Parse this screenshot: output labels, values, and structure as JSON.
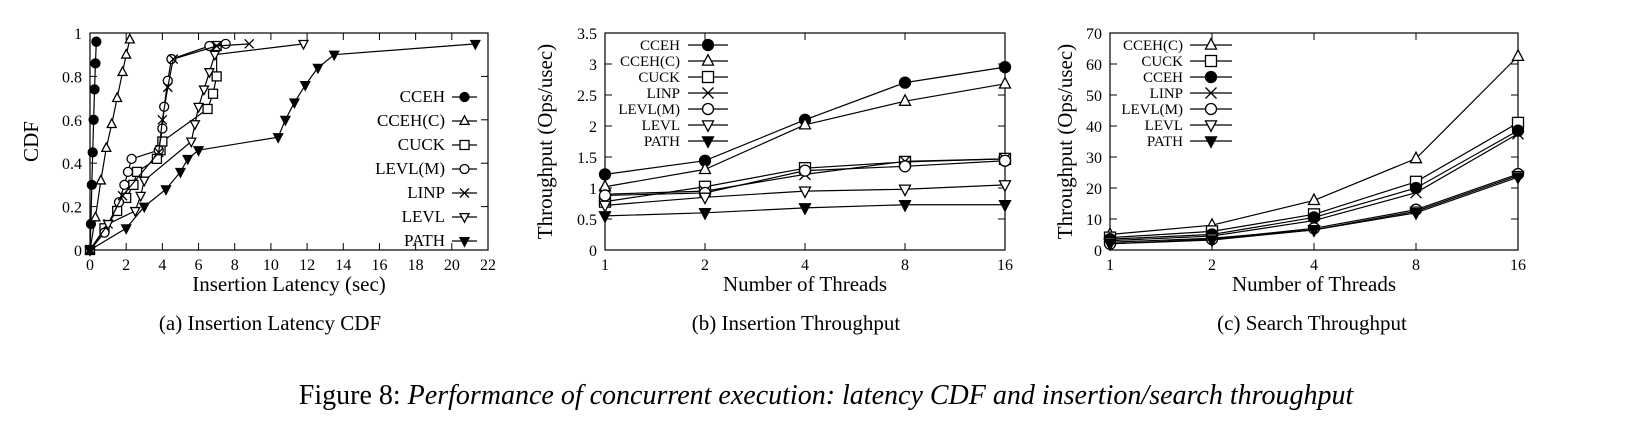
{
  "figure_caption": {
    "label": "Figure 8:",
    "text": "Performance of concurrent execution: latency CDF and insertion/search throughput"
  },
  "chart_data": [
    {
      "id": "a",
      "type": "line",
      "subcaption": "(a)  Insertion Latency CDF",
      "xlabel": "Insertion Latency (sec)",
      "ylabel": "CDF",
      "xlim": [
        0,
        22
      ],
      "ylim": [
        0,
        1
      ],
      "xticks": [
        0,
        2,
        4,
        6,
        8,
        10,
        12,
        14,
        16,
        18,
        20,
        22
      ],
      "yticks": [
        0,
        0.2,
        0.4,
        0.6,
        0.8,
        1
      ],
      "grid": false,
      "legend_position": "right",
      "series": [
        {
          "name": "CCEH",
          "marker": "filled-circle",
          "x": [
            0,
            0.05,
            0.1,
            0.15,
            0.2,
            0.25,
            0.3,
            0.35
          ],
          "y": [
            0,
            0.12,
            0.3,
            0.45,
            0.6,
            0.74,
            0.86,
            0.96
          ]
        },
        {
          "name": "CCEH(C)",
          "marker": "triangle",
          "x": [
            0,
            0.3,
            0.6,
            0.9,
            1.2,
            1.5,
            1.8,
            2.0,
            2.2
          ],
          "y": [
            0,
            0.15,
            0.32,
            0.47,
            0.58,
            0.7,
            0.82,
            0.9,
            0.97
          ]
        },
        {
          "name": "CUCK",
          "marker": "square",
          "x": [
            0,
            0.8,
            1.5,
            2.0,
            2.4,
            2.6,
            3.7,
            3.9,
            4.0,
            6.5,
            6.8,
            7.0,
            7.0
          ],
          "y": [
            0,
            0.1,
            0.18,
            0.24,
            0.3,
            0.36,
            0.42,
            0.46,
            0.5,
            0.65,
            0.72,
            0.8,
            0.94
          ]
        },
        {
          "name": "LEVL(M)",
          "marker": "circle",
          "x": [
            0,
            0.8,
            1.6,
            1.9,
            2.1,
            2.3,
            3.8,
            4.0,
            4.1,
            4.3,
            4.5,
            6.6,
            7.5
          ],
          "y": [
            0,
            0.08,
            0.22,
            0.3,
            0.36,
            0.42,
            0.46,
            0.56,
            0.66,
            0.78,
            0.88,
            0.94,
            0.95
          ]
        },
        {
          "name": "LINP",
          "marker": "x",
          "x": [
            0,
            1.0,
            1.8,
            3.8,
            4.0,
            4.3,
            4.6,
            7.0,
            8.8
          ],
          "y": [
            0,
            0.12,
            0.25,
            0.45,
            0.6,
            0.75,
            0.88,
            0.94,
            0.95
          ]
        },
        {
          "name": "LEVL",
          "marker": "triangle-down",
          "x": [
            0,
            1.0,
            2.5,
            2.8,
            3.0,
            5.6,
            5.8,
            6.0,
            6.3,
            6.6,
            6.9,
            11.8
          ],
          "y": [
            0,
            0.12,
            0.18,
            0.25,
            0.32,
            0.5,
            0.58,
            0.66,
            0.74,
            0.82,
            0.9,
            0.95
          ]
        },
        {
          "name": "PATH",
          "marker": "filled-triangle-down",
          "x": [
            0,
            2.0,
            3.0,
            4.2,
            5.0,
            5.4,
            6.0,
            10.4,
            10.8,
            11.3,
            11.9,
            12.6,
            13.5,
            21.3
          ],
          "y": [
            0,
            0.1,
            0.2,
            0.28,
            0.36,
            0.42,
            0.46,
            0.52,
            0.6,
            0.68,
            0.76,
            0.84,
            0.9,
            0.95
          ]
        }
      ]
    },
    {
      "id": "b",
      "type": "line",
      "subcaption": "(b)  Insertion Throughput",
      "xlabel": "Number of Threads",
      "ylabel": "Throughput (Ops/usec)",
      "categories": [
        "1",
        "2",
        "4",
        "8",
        "16"
      ],
      "ylim": [
        0,
        3.5
      ],
      "yticks": [
        0,
        0.5,
        1,
        1.5,
        2,
        2.5,
        3,
        3.5
      ],
      "grid": false,
      "legend_position": "top-left",
      "series": [
        {
          "name": "CCEH",
          "marker": "filled-circle",
          "values": [
            1.22,
            1.44,
            2.1,
            2.7,
            2.95
          ]
        },
        {
          "name": "CCEH(C)",
          "marker": "triangle",
          "values": [
            1.02,
            1.3,
            2.02,
            2.4,
            2.68
          ]
        },
        {
          "name": "CUCK",
          "marker": "square",
          "values": [
            0.78,
            1.02,
            1.32,
            1.42,
            1.47
          ]
        },
        {
          "name": "LINP",
          "marker": "x",
          "values": [
            0.9,
            0.95,
            1.22,
            1.43,
            1.47
          ]
        },
        {
          "name": "LEVL(M)",
          "marker": "circle",
          "values": [
            0.88,
            0.92,
            1.28,
            1.35,
            1.44
          ]
        },
        {
          "name": "LEVL",
          "marker": "triangle-down",
          "values": [
            0.72,
            0.85,
            0.95,
            0.98,
            1.05
          ]
        },
        {
          "name": "PATH",
          "marker": "filled-triangle-down",
          "values": [
            0.55,
            0.6,
            0.68,
            0.73,
            0.73
          ]
        }
      ]
    },
    {
      "id": "c",
      "type": "line",
      "subcaption": "(c)  Search Throughput",
      "xlabel": "Number of Threads",
      "ylabel": "Throughput (Ops/usec)",
      "categories": [
        "1",
        "2",
        "4",
        "8",
        "16"
      ],
      "ylim": [
        0,
        70
      ],
      "yticks": [
        0,
        10,
        20,
        30,
        40,
        50,
        60,
        70
      ],
      "grid": false,
      "legend_position": "top-left",
      "series": [
        {
          "name": "CCEH(C)",
          "marker": "triangle",
          "values": [
            5,
            8,
            16,
            29.5,
            62.5
          ]
        },
        {
          "name": "CUCK",
          "marker": "square",
          "values": [
            4,
            6,
            11.5,
            22,
            41
          ]
        },
        {
          "name": "CCEH",
          "marker": "filled-circle",
          "values": [
            3.5,
            5,
            10.5,
            20,
            38.5
          ]
        },
        {
          "name": "LINP",
          "marker": "x",
          "values": [
            3,
            4.5,
            9.5,
            18.5,
            37.5
          ]
        },
        {
          "name": "LEVL(M)",
          "marker": "circle",
          "values": [
            2,
            3.5,
            7,
            13,
            24.5
          ]
        },
        {
          "name": "LEVL",
          "marker": "triangle-down",
          "values": [
            2.5,
            3.8,
            6.5,
            12.5,
            24
          ]
        },
        {
          "name": "PATH",
          "marker": "filled-triangle-down",
          "values": [
            2,
            3.2,
            6.5,
            12,
            23.5
          ]
        }
      ]
    }
  ]
}
